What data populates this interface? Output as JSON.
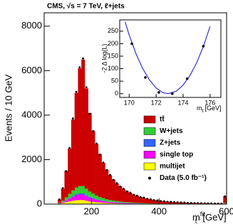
{
  "chart_data": [
    {
      "type": "histogram",
      "title": "CMS,  √s = 7 TeV, ℓ+jets",
      "ylabel": "Events / 10 GeV",
      "xlabel": {
        "main": "m",
        "sup": "fit",
        "sub": "t",
        "unit": "[GeV]"
      },
      "xlim": [
        60,
        600
      ],
      "ylim": [
        0,
        8600
      ],
      "xticks": [
        200,
        400,
        600
      ],
      "yticks": [
        0,
        2000,
        4000,
        6000,
        8000
      ],
      "bins": [
        100,
        110,
        120,
        130,
        140,
        150,
        160,
        170,
        180,
        190,
        200,
        210,
        220,
        230,
        240,
        250,
        260,
        270,
        280,
        290,
        300,
        310,
        320,
        330,
        340,
        350,
        360,
        370,
        380,
        390,
        400,
        410,
        420,
        430,
        440,
        450,
        460,
        470,
        480,
        490,
        500,
        510,
        520,
        530,
        540,
        550,
        560,
        570,
        580,
        590,
        600
      ],
      "series": [
        {
          "name": "tt̄",
          "color": "#cc0000",
          "values": [
            147,
            542,
            1195,
            2035,
            3185,
            4255,
            5290,
            5690,
            4508,
            3535,
            2832,
            2318,
            1932,
            1580,
            1328,
            1115,
            939,
            794,
            684,
            581,
            496,
            428,
            368,
            317,
            273,
            240,
            204,
            179,
            158,
            138,
            119,
            107,
            94,
            85,
            76,
            68,
            61,
            55,
            49,
            44,
            40,
            37,
            33,
            31,
            28,
            25,
            23,
            21,
            19,
            298
          ]
        },
        {
          "name": "W+jets",
          "color": "#33cc33",
          "values": [
            20,
            60,
            120,
            190,
            250,
            300,
            330,
            330,
            290,
            240,
            200,
            170,
            140,
            120,
            100,
            85,
            72,
            60,
            52,
            45,
            38,
            33,
            28,
            24,
            21,
            18,
            16,
            14,
            12,
            10,
            9,
            8,
            7,
            7,
            6,
            5,
            5,
            4,
            4,
            3,
            3,
            3,
            3,
            2,
            2,
            2,
            2,
            2,
            2,
            25
          ]
        },
        {
          "name": "Z+jets",
          "color": "#3366ff",
          "values": [
            3,
            8,
            15,
            25,
            35,
            45,
            50,
            50,
            42,
            35,
            28,
            22,
            18,
            15,
            12,
            10,
            9,
            8,
            7,
            6,
            5,
            4,
            4,
            3,
            3,
            2,
            2,
            2,
            2,
            1,
            1,
            1,
            1,
            1,
            1,
            1,
            1,
            1,
            1,
            1,
            0,
            0,
            0,
            0,
            0,
            0,
            0,
            0,
            0,
            3
          ]
        },
        {
          "name": "single top",
          "color": "#ff00ff",
          "values": [
            10,
            40,
            80,
            130,
            180,
            230,
            250,
            250,
            210,
            170,
            140,
            110,
            90,
            75,
            60,
            50,
            45,
            38,
            32,
            28,
            23,
            20,
            17,
            15,
            13,
            11,
            10,
            8,
            7,
            6,
            6,
            5,
            4,
            4,
            4,
            3,
            3,
            3,
            2,
            2,
            2,
            2,
            2,
            1,
            1,
            1,
            1,
            1,
            1,
            14
          ]
        },
        {
          "name": "multijet",
          "color": "#ffff00",
          "values": [
            20,
            50,
            90,
            120,
            150,
            170,
            180,
            180,
            150,
            120,
            100,
            80,
            70,
            60,
            50,
            40,
            35,
            30,
            25,
            20,
            18,
            15,
            13,
            11,
            10,
            9,
            8,
            7,
            6,
            5,
            5,
            4,
            4,
            3,
            3,
            3,
            2,
            2,
            2,
            2,
            2,
            1,
            1,
            1,
            1,
            1,
            1,
            1,
            1,
            10
          ]
        }
      ],
      "data": {
        "name": "Data (5.0 fb⁻¹)",
        "color": "#000000",
        "values": [
          210,
          720,
          1480,
          2520,
          3850,
          5050,
          6150,
          6550,
          5250,
          4050,
          3280,
          2720,
          2230,
          1870,
          1530,
          1310,
          1090,
          940,
          790,
          690,
          570,
          510,
          420,
          380,
          310,
          290,
          235,
          215,
          180,
          165,
          135,
          128,
          105,
          102,
          88,
          82,
          70,
          66,
          56,
          53,
          45,
          44,
          38,
          36,
          31,
          30,
          26,
          25,
          22,
          345
        ]
      }
    },
    {
      "type": "line",
      "ylabel": "-2 Δ log(L)",
      "xlabel": {
        "main": "m",
        "sub": "t",
        "unit": "[GeV]"
      },
      "xlim": [
        169.3,
        176.8
      ],
      "ylim": [
        -15,
        295
      ],
      "xticks": [
        170,
        172,
        174,
        176
      ],
      "yticks": [
        0,
        50,
        100,
        150,
        200,
        250
      ],
      "series": [
        {
          "color": "#000000",
          "x": [
            170.2,
            171.2,
            172.2,
            173.2,
            174.3,
            175.5
          ],
          "values": [
            200,
            65,
            5,
            0,
            60,
            190
          ]
        },
        {
          "color": "#3333cc",
          "x": [
            169.7,
            170,
            170.5,
            171,
            171.5,
            172,
            172.5,
            172.9,
            173.5,
            174,
            174.5,
            175,
            175.5,
            176
          ],
          "values": [
            287,
            235,
            161,
            101,
            55,
            23,
            4,
            0,
            10,
            34,
            72,
            123,
            189,
            269
          ]
        }
      ]
    }
  ]
}
